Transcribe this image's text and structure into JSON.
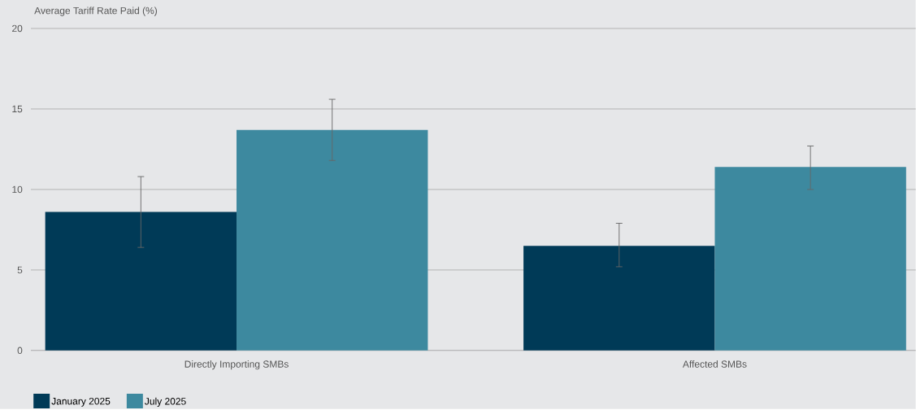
{
  "chart_data": {
    "type": "bar",
    "ylabel": "Average Tariff Rate Paid (%)",
    "categories": [
      "Directly Importing SMBs",
      "Affected SMBs"
    ],
    "series": [
      {
        "name": "January 2025",
        "color": "#003a57",
        "values": [
          8.6,
          6.5
        ],
        "errors": [
          [
            6.4,
            10.8
          ],
          [
            5.2,
            7.9
          ]
        ]
      },
      {
        "name": "July 2025",
        "color": "#3d899f",
        "values": [
          13.7,
          11.4
        ],
        "errors": [
          [
            11.8,
            15.6
          ],
          [
            10.0,
            12.7
          ]
        ]
      }
    ],
    "ylim": [
      0,
      20
    ],
    "yticks": [
      0,
      5,
      10,
      15,
      20
    ],
    "grid": "y",
    "legend": "bottom left"
  }
}
